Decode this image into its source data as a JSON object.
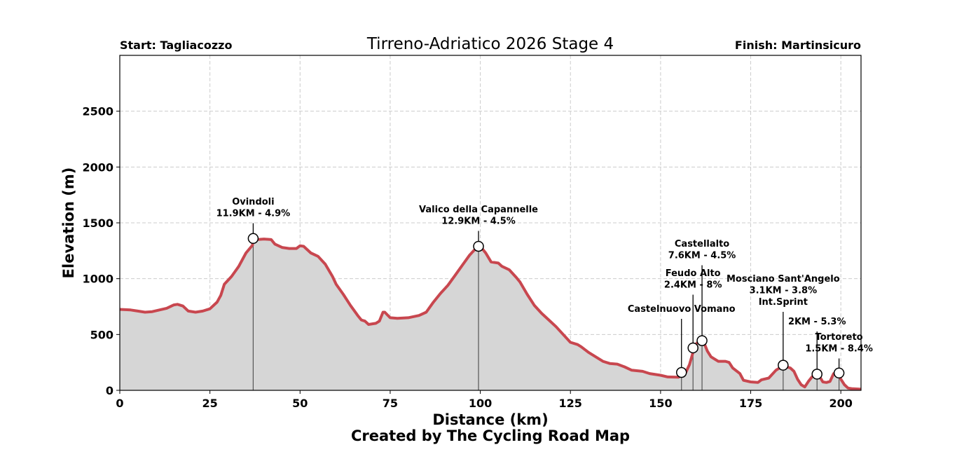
{
  "chart_data": {
    "type": "area",
    "title": "Tirreno-Adriatico 2026 Stage 4",
    "start_label": "Start: Tagliacozzo",
    "finish_label": "Finish: Martinsicuro",
    "xlabel": "Distance (km)",
    "ylabel": "Elevation (m)",
    "credit": "Created by The Cycling Road Map",
    "xlim": [
      0,
      205.6
    ],
    "ylim": [
      0,
      3000
    ],
    "x_ticks": [
      "0",
      "25",
      "50",
      "75",
      "100",
      "125",
      "150",
      "175",
      "200"
    ],
    "y_ticks": [
      "0",
      "500",
      "1000",
      "1500",
      "2000",
      "2500"
    ],
    "grid": true,
    "colors": {
      "line": "#c8474f",
      "fill": "#d6d6d6",
      "grid": "#cccccc"
    },
    "profile": {
      "x": [
        0,
        3,
        5,
        7,
        9,
        11,
        13,
        15,
        16,
        17.5,
        19,
        21,
        23,
        25,
        27,
        28,
        29,
        31,
        33,
        35,
        36.8,
        37,
        38,
        40,
        42,
        43,
        45,
        47,
        49,
        50,
        51,
        53,
        55,
        57,
        59,
        60,
        62,
        64,
        66,
        67,
        68,
        69,
        71,
        72,
        73,
        73.5,
        75,
        77,
        80,
        83,
        85,
        87,
        89,
        91,
        93,
        95,
        97,
        99,
        100,
        101.5,
        103,
        105,
        106,
        108,
        110,
        111,
        113,
        115,
        117,
        119,
        121,
        123,
        125,
        127,
        128,
        130,
        132,
        134,
        136,
        138,
        140,
        142,
        145,
        147,
        150,
        152,
        155,
        157,
        158,
        159,
        160,
        161,
        162,
        163,
        164,
        166,
        168,
        169,
        170,
        172,
        173,
        175,
        177,
        178,
        180,
        182,
        184,
        185,
        186,
        187,
        188,
        189,
        190,
        191,
        192,
        193,
        194,
        195,
        196,
        197,
        198,
        199,
        200,
        201,
        202,
        203,
        205.6
      ],
      "y": [
        725,
        720,
        710,
        700,
        705,
        720,
        735,
        765,
        770,
        755,
        710,
        700,
        710,
        730,
        790,
        850,
        950,
        1020,
        1110,
        1230,
        1300,
        1360,
        1350,
        1355,
        1350,
        1310,
        1280,
        1270,
        1270,
        1295,
        1290,
        1230,
        1200,
        1130,
        1020,
        950,
        860,
        760,
        670,
        630,
        620,
        590,
        600,
        620,
        700,
        700,
        650,
        645,
        650,
        670,
        700,
        790,
        870,
        940,
        1030,
        1120,
        1210,
        1280,
        1290,
        1230,
        1150,
        1140,
        1110,
        1080,
        1010,
        970,
        860,
        760,
        690,
        630,
        570,
        500,
        430,
        410,
        390,
        340,
        300,
        260,
        240,
        235,
        210,
        180,
        170,
        150,
        135,
        120,
        118,
        160,
        230,
        340,
        420,
        450,
        430,
        350,
        300,
        260,
        260,
        250,
        200,
        150,
        90,
        75,
        70,
        95,
        110,
        180,
        220,
        210,
        200,
        170,
        100,
        50,
        30,
        80,
        120,
        150,
        130,
        75,
        70,
        80,
        150,
        160,
        100,
        50,
        20,
        15,
        10
      ]
    },
    "annotations": [
      {
        "km": 37,
        "elev": 1360,
        "lines": [
          "Ovindoli",
          "11.9KM - 4.9%"
        ]
      },
      {
        "km": 99.5,
        "elev": 1290,
        "lines": [
          "Valico della Capannelle",
          "12.9KM - 4.5%"
        ]
      },
      {
        "km": 155.8,
        "elev": 160,
        "lines": [
          "Castelnuovo Vomano"
        ]
      },
      {
        "km": 159,
        "elev": 380,
        "lines": [
          "Feudo Alto",
          "2.4KM - 8%"
        ]
      },
      {
        "km": 161.5,
        "elev": 445,
        "lines": [
          "Castellalto",
          "7.6KM - 4.5%"
        ]
      },
      {
        "km": 184,
        "elev": 225,
        "lines": [
          "Mosciano Sant'Angelo",
          "3.1KM - 3.8%",
          "Int.Sprint"
        ]
      },
      {
        "km": 193.4,
        "elev": 145,
        "lines": [
          "2KM - 5.3%"
        ]
      },
      {
        "km": 199.5,
        "elev": 155,
        "lines": [
          "Tortoreto",
          "1.5KM - 8.4%"
        ]
      }
    ]
  }
}
